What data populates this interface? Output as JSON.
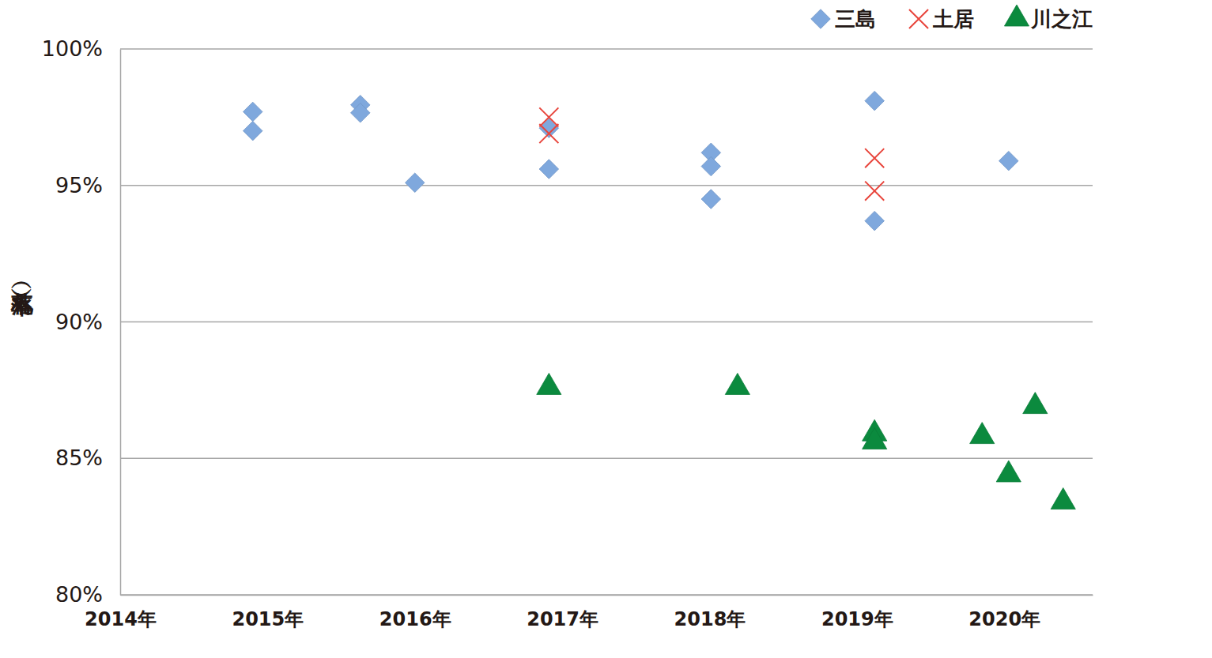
{
  "chart_data": {
    "type": "scatter",
    "y_label": "（落札率）",
    "xlim": [
      2014,
      2020.6
    ],
    "xticks": [
      {
        "value": 2014,
        "label": "2014年"
      },
      {
        "value": 2015,
        "label": "2015年"
      },
      {
        "value": 2016,
        "label": "2016年"
      },
      {
        "value": 2017,
        "label": "2017年"
      },
      {
        "value": 2018,
        "label": "2018年"
      },
      {
        "value": 2019,
        "label": "2019年"
      },
      {
        "value": 2020,
        "label": "2020年"
      }
    ],
    "ylim": [
      80,
      100
    ],
    "yticks": [
      {
        "value": 80,
        "label": "80%"
      },
      {
        "value": 85,
        "label": "85%"
      },
      {
        "value": 90,
        "label": "90%"
      },
      {
        "value": 95,
        "label": "95%"
      },
      {
        "value": 100,
        "label": "100%"
      }
    ],
    "grid": true,
    "legend": "top-right",
    "series": [
      {
        "name": "三島",
        "color": "#7fa8dd",
        "marker": "diamond",
        "x": [
          2014.9,
          2014.9,
          2015.63,
          2015.63,
          2016.0,
          2016.91,
          2016.91,
          2018.01,
          2018.01,
          2018.01,
          2019.12,
          2019.12,
          2020.03
        ],
        "values": [
          97.7,
          97.0,
          97.95,
          97.66,
          95.1,
          97.1,
          95.6,
          96.2,
          95.7,
          94.5,
          98.1,
          93.7,
          95.9
        ]
      },
      {
        "name": "土居",
        "color": "#e8453c",
        "marker": "x",
        "x": [
          2016.91,
          2016.91,
          2019.12,
          2019.12
        ],
        "values": [
          97.5,
          96.9,
          96.0,
          94.8
        ]
      },
      {
        "name": "川之江",
        "color": "#0b8a3e",
        "marker": "triangle",
        "x": [
          2016.91,
          2018.19,
          2019.12,
          2019.12,
          2019.85,
          2020.03,
          2020.21,
          2020.4
        ],
        "values": [
          87.6,
          87.6,
          85.9,
          85.6,
          85.8,
          84.4,
          86.9,
          83.4
        ]
      }
    ]
  }
}
